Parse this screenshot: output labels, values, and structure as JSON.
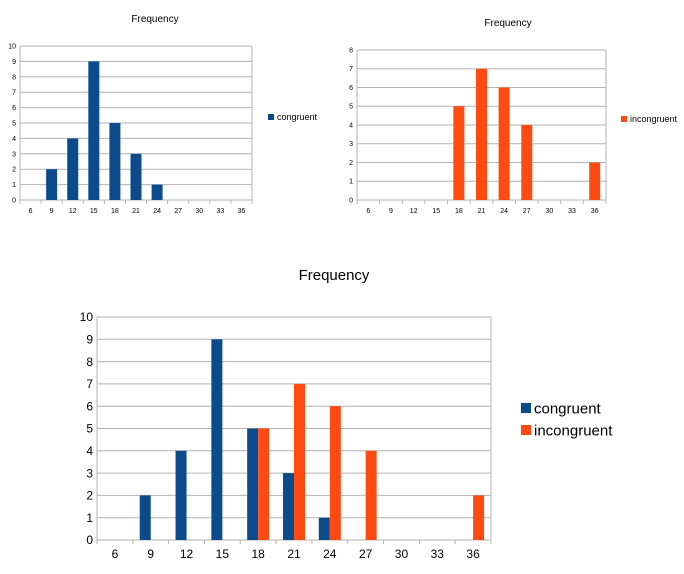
{
  "colors": {
    "congruent": "#0b4a8b",
    "incongruent": "#ff4a12",
    "grid": "#b3b3b3",
    "axis": "#b3b3b3"
  },
  "chart_data": [
    {
      "type": "bar",
      "title": "Frequency",
      "categories": [
        "6",
        "9",
        "12",
        "15",
        "18",
        "21",
        "24",
        "27",
        "30",
        "33",
        "36"
      ],
      "series": [
        {
          "name": "congruent",
          "color": "#0b4a8b",
          "values": [
            0,
            2,
            4,
            9,
            5,
            3,
            1,
            0,
            0,
            0,
            0
          ]
        }
      ],
      "ylim": [
        0,
        10
      ],
      "yticks": [
        0,
        1,
        2,
        3,
        4,
        5,
        6,
        7,
        8,
        9,
        10
      ],
      "grid": true,
      "legend": "right"
    },
    {
      "type": "bar",
      "title": "Frequency",
      "categories": [
        "6",
        "9",
        "12",
        "15",
        "18",
        "21",
        "24",
        "27",
        "30",
        "33",
        "36"
      ],
      "series": [
        {
          "name": "incongruent",
          "color": "#ff4a12",
          "values": [
            0,
            0,
            0,
            0,
            5,
            7,
            6,
            4,
            0,
            0,
            2
          ]
        }
      ],
      "ylim": [
        0,
        8
      ],
      "yticks": [
        0,
        1,
        2,
        3,
        4,
        5,
        6,
        7,
        8
      ],
      "grid": true,
      "legend": "right"
    },
    {
      "type": "bar",
      "title": "Frequency",
      "categories": [
        "6",
        "9",
        "12",
        "15",
        "18",
        "21",
        "24",
        "27",
        "30",
        "33",
        "36"
      ],
      "series": [
        {
          "name": "congruent",
          "color": "#0b4a8b",
          "values": [
            0,
            2,
            4,
            9,
            5,
            3,
            1,
            0,
            0,
            0,
            0
          ]
        },
        {
          "name": "incongruent",
          "color": "#ff4a12",
          "values": [
            0,
            0,
            0,
            0,
            5,
            7,
            6,
            4,
            0,
            0,
            2
          ]
        }
      ],
      "ylim": [
        0,
        10
      ],
      "yticks": [
        0,
        1,
        2,
        3,
        4,
        5,
        6,
        7,
        8,
        9,
        10
      ],
      "grid": true,
      "legend": "right"
    }
  ]
}
